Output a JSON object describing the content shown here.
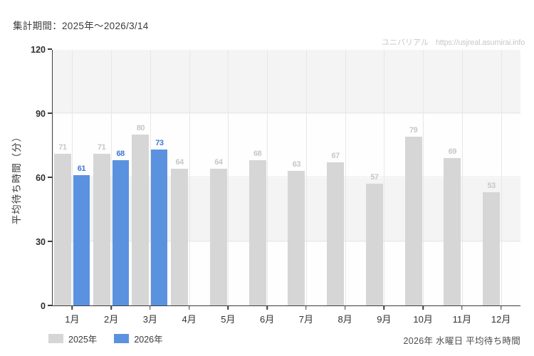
{
  "header": {
    "period_label": "集計期間：2025年～2026/3/14",
    "watermark": {
      "brand": "ユニバリアル",
      "url": "https://usjreal.asumirai.info"
    }
  },
  "chart_data": {
    "type": "bar",
    "title": "",
    "xlabel": "",
    "ylabel": "平均待ち時間（分）",
    "ylim": [
      0,
      120
    ],
    "yticks": [
      0,
      30,
      60,
      90,
      120
    ],
    "categories": [
      "1月",
      "2月",
      "3月",
      "4月",
      "5月",
      "6月",
      "7月",
      "8月",
      "9月",
      "10月",
      "11月",
      "12月"
    ],
    "series": [
      {
        "name": "2025年",
        "color": "#d6d6d6",
        "label_color": "#c7c7c7",
        "values": [
          71,
          71,
          80,
          64,
          64,
          68,
          63,
          67,
          57,
          79,
          69,
          53
        ]
      },
      {
        "name": "2026年",
        "color": "#5b92e0",
        "label_color": "#3e78d4",
        "values": [
          61,
          68,
          73,
          null,
          null,
          null,
          null,
          null,
          null,
          null,
          null,
          null
        ]
      }
    ],
    "legend": [
      "2025年",
      "2026年"
    ],
    "legend_position": "bottom-left",
    "grid": {
      "horizontal_bands": true,
      "vertical_lines_at_month_centers": true
    }
  },
  "footer": {
    "caption": "2026年 水曜日 平均待ち時間"
  },
  "colors": {
    "band_gray": "#f4f4f4",
    "gridline": "#e7e7e7",
    "axis": "#3c3c3c",
    "bar_2025": "#d6d6d6",
    "bar_2026": "#5b92e0",
    "value_label_2025": "#c7c7c7",
    "value_label_2026": "#3e78d4",
    "watermark_text": "#c6c8ca"
  }
}
